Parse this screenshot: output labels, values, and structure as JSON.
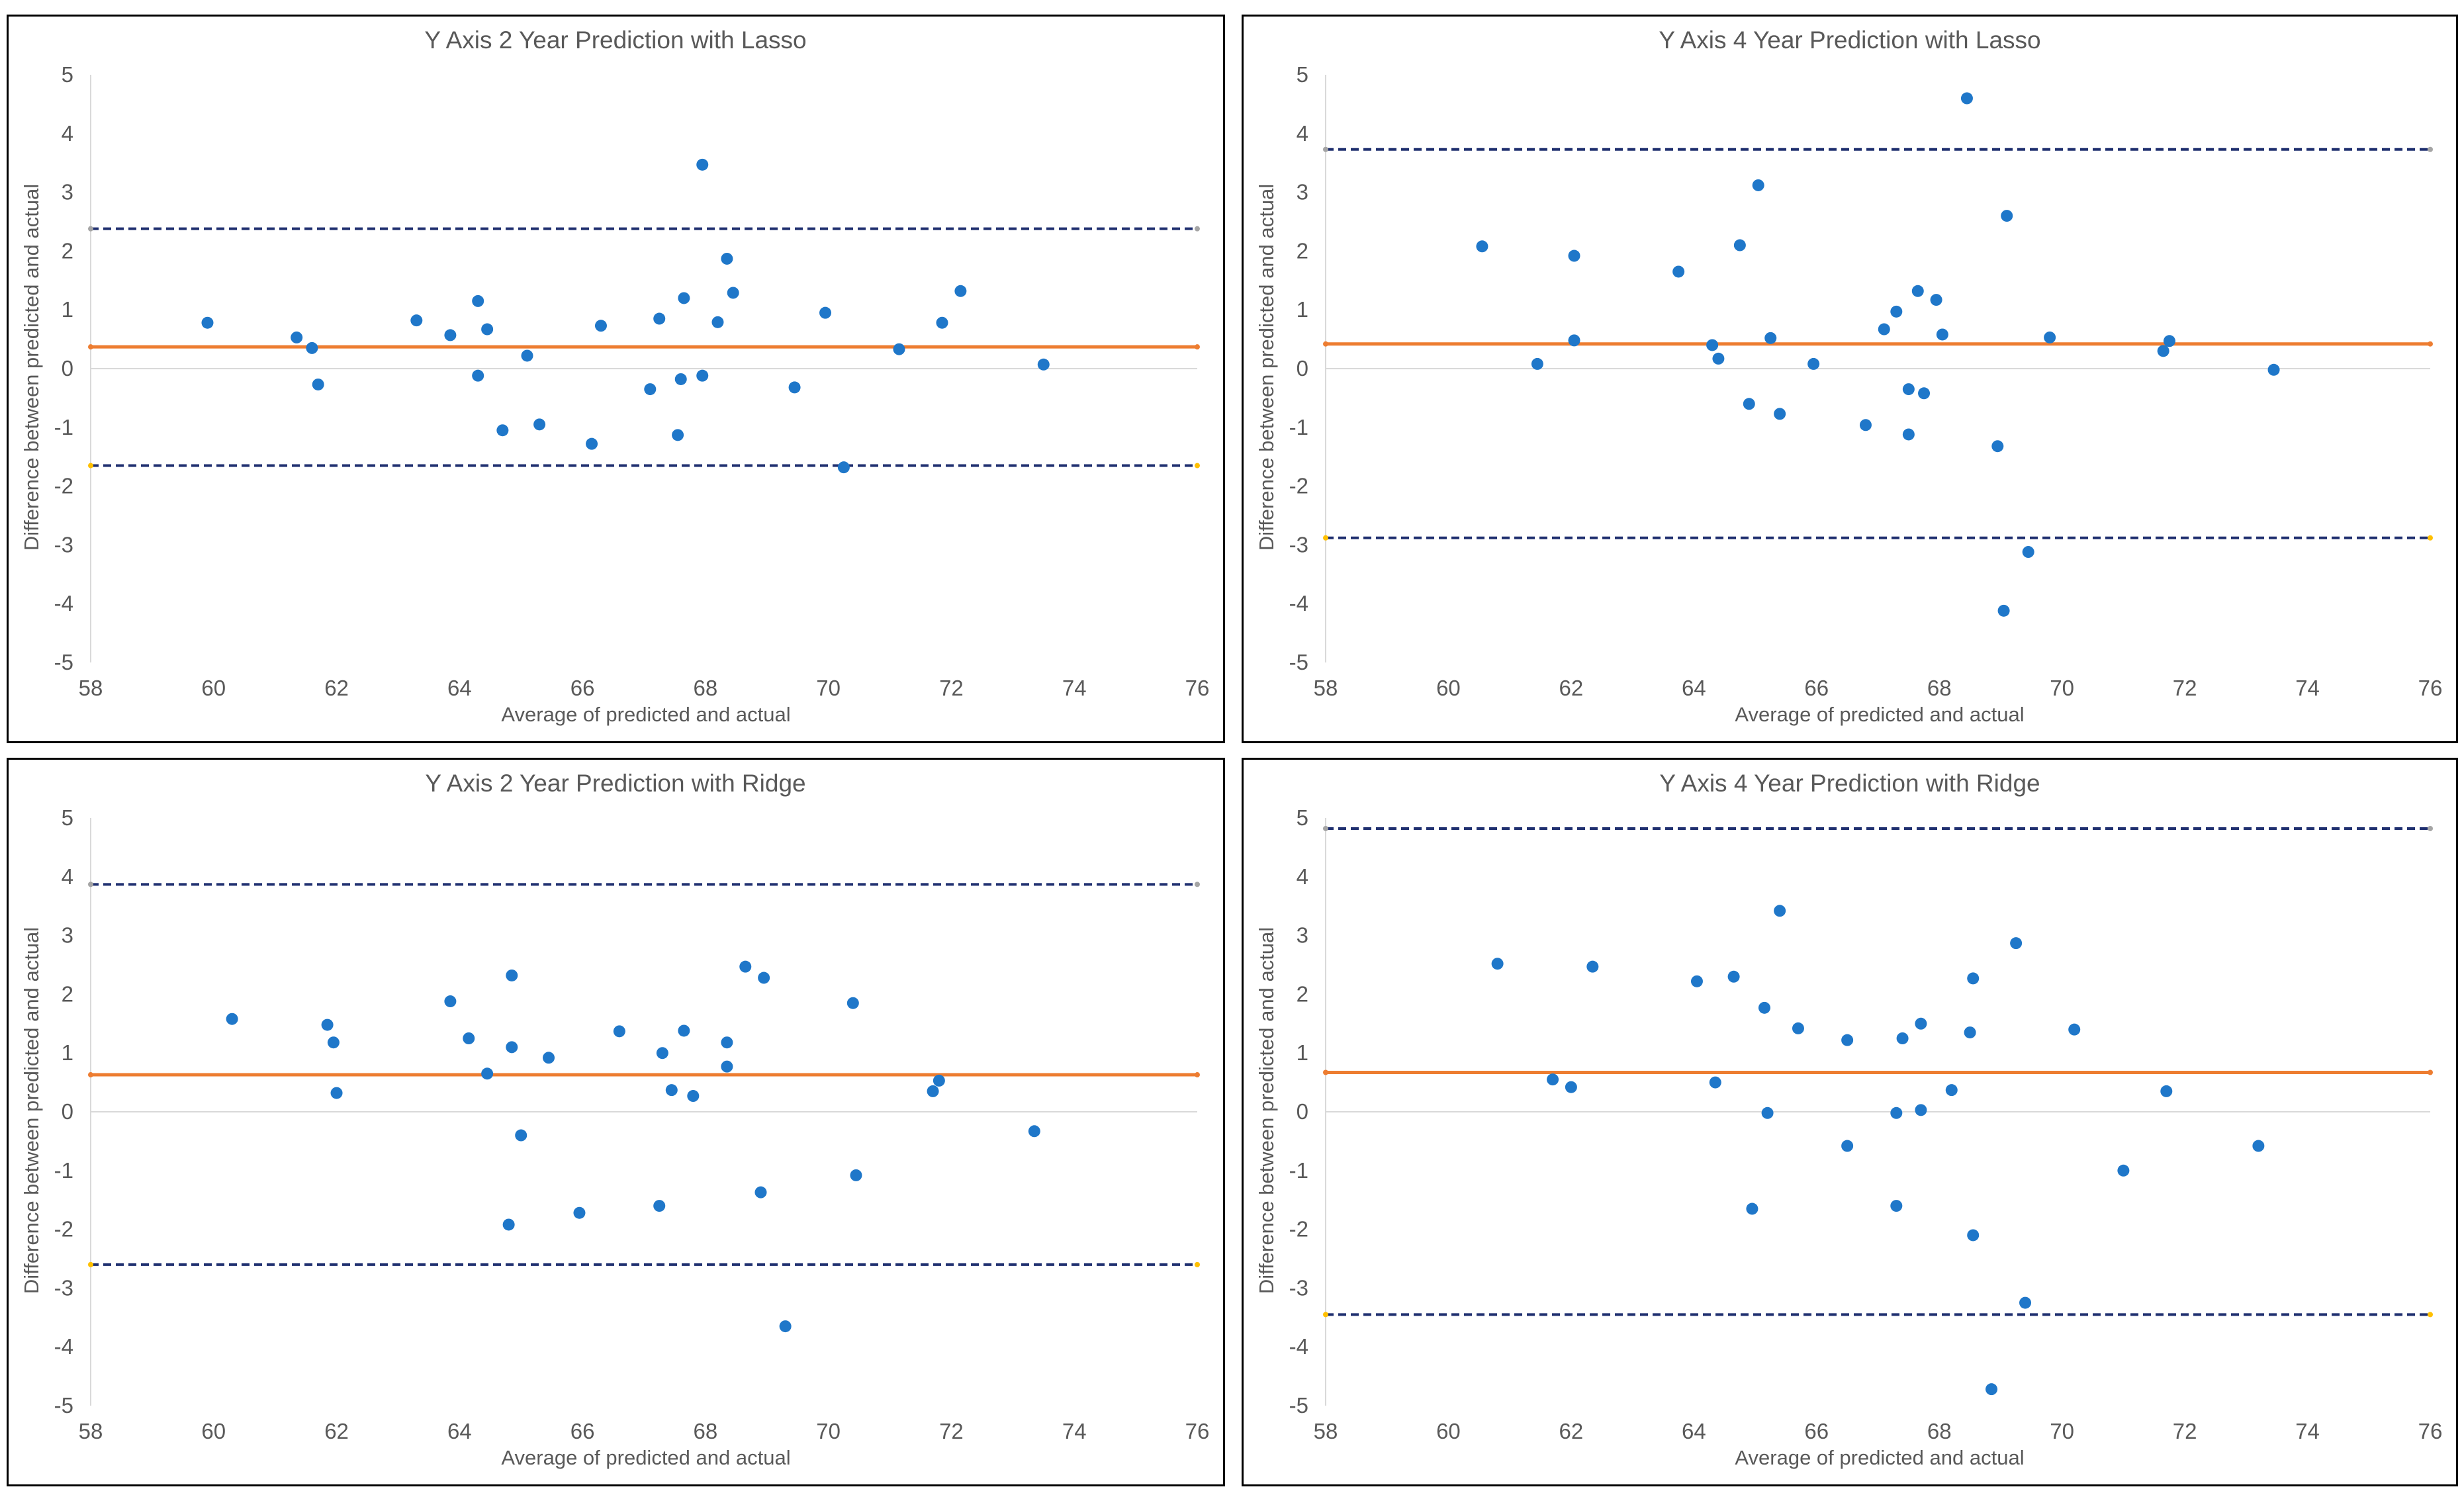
{
  "colors": {
    "points": "#1f77c9",
    "mean_line": "#ed7d31",
    "limit_line": "#1f2f6f",
    "zero_line": "#d9d9d9",
    "text": "#595959",
    "upper_marker": "#a5a5a5",
    "lower_marker": "#ffc000"
  },
  "chart_data": [
    {
      "type": "scatter",
      "title": "Y Axis 2 Year Prediction with Lasso",
      "xlabel": "Average of predicted and actual",
      "ylabel": "Difference between predicted and actual",
      "xlim": [
        58,
        76
      ],
      "ylim": [
        -5,
        5
      ],
      "xticks": [
        58,
        60,
        62,
        64,
        66,
        68,
        70,
        72,
        74,
        76
      ],
      "yticks": [
        -5,
        -4,
        -3,
        -2,
        -1,
        0,
        1,
        2,
        3,
        4,
        5
      ],
      "mean": 0.37,
      "upper_limit": 2.38,
      "lower_limit": -1.65,
      "x": [
        59.9,
        61.35,
        61.6,
        61.7,
        63.3,
        63.85,
        64.3,
        64.3,
        64.45,
        64.7,
        65.1,
        65.3,
        66.15,
        66.3,
        67.1,
        67.25,
        67.55,
        67.6,
        67.65,
        67.95,
        67.95,
        68.2,
        68.35,
        68.45,
        69.45,
        69.95,
        70.25,
        71.15,
        71.85,
        72.15,
        73.5
      ],
      "y": [
        0.78,
        0.53,
        0.35,
        -0.27,
        0.82,
        0.57,
        1.15,
        -0.12,
        0.67,
        -1.05,
        0.22,
        -0.95,
        -1.28,
        0.73,
        -0.35,
        0.85,
        -1.13,
        -0.18,
        1.2,
        3.47,
        -0.12,
        0.79,
        1.87,
        1.29,
        -0.32,
        0.95,
        -1.68,
        0.33,
        0.78,
        1.32,
        0.07
      ]
    },
    {
      "type": "scatter",
      "title": "Y Axis 4 Year Prediction with Lasso",
      "xlabel": "Average of predicted and actual",
      "ylabel": "Difference between predicted and actual",
      "xlim": [
        58,
        76
      ],
      "ylim": [
        -5,
        5
      ],
      "xticks": [
        58,
        60,
        62,
        64,
        66,
        68,
        70,
        72,
        74,
        76
      ],
      "yticks": [
        -5,
        -4,
        -3,
        -2,
        -1,
        0,
        1,
        2,
        3,
        4,
        5
      ],
      "mean": 0.42,
      "upper_limit": 3.73,
      "lower_limit": -2.88,
      "x": [
        60.55,
        61.45,
        62.05,
        62.05,
        63.75,
        64.3,
        64.4,
        64.75,
        64.9,
        65.05,
        65.25,
        65.4,
        65.95,
        66.8,
        67.1,
        67.3,
        67.5,
        67.5,
        67.65,
        67.75,
        67.95,
        68.05,
        68.45,
        68.95,
        69.05,
        69.1,
        69.45,
        69.8,
        71.65,
        71.75,
        73.45
      ],
      "y": [
        2.08,
        0.08,
        1.92,
        0.48,
        1.65,
        0.4,
        0.17,
        2.1,
        -0.6,
        3.12,
        0.52,
        -0.77,
        0.08,
        -0.96,
        0.67,
        0.97,
        -0.35,
        -1.12,
        1.32,
        -0.42,
        1.17,
        0.58,
        4.6,
        -1.32,
        -4.12,
        2.6,
        -3.12,
        0.53,
        0.3,
        0.47,
        -0.02
      ]
    },
    {
      "type": "scatter",
      "title": "Y Axis 2 Year Prediction with Ridge",
      "xlabel": "Average of predicted and actual",
      "ylabel": "Difference between predicted and actual",
      "xlim": [
        58,
        76
      ],
      "ylim": [
        -5,
        5
      ],
      "xticks": [
        58,
        60,
        62,
        64,
        66,
        68,
        70,
        72,
        74,
        76
      ],
      "yticks": [
        -5,
        -4,
        -3,
        -2,
        -1,
        0,
        1,
        2,
        3,
        4,
        5
      ],
      "mean": 0.63,
      "upper_limit": 3.87,
      "lower_limit": -2.6,
      "x": [
        60.3,
        61.85,
        61.95,
        62.0,
        63.85,
        64.15,
        64.45,
        64.8,
        64.85,
        64.85,
        65.0,
        65.45,
        65.95,
        66.6,
        67.25,
        67.3,
        67.45,
        67.65,
        67.8,
        68.35,
        68.35,
        68.65,
        68.9,
        68.95,
        69.3,
        70.4,
        70.45,
        71.7,
        71.8,
        73.35
      ],
      "y": [
        1.58,
        1.48,
        1.18,
        0.32,
        1.88,
        1.25,
        0.65,
        -1.92,
        1.1,
        2.32,
        -0.4,
        0.92,
        -1.72,
        1.37,
        -1.6,
        1.0,
        0.37,
        1.38,
        0.27,
        1.18,
        0.77,
        2.47,
        -1.37,
        2.28,
        -3.65,
        1.85,
        -1.08,
        0.35,
        0.53,
        -0.33
      ]
    },
    {
      "type": "scatter",
      "title": "Y Axis 4 Year Prediction with Ridge",
      "xlabel": "Average of predicted and actual",
      "ylabel": "Difference between predicted and actual",
      "xlim": [
        58,
        76
      ],
      "ylim": [
        -5,
        5
      ],
      "xticks": [
        58,
        60,
        62,
        64,
        66,
        68,
        70,
        72,
        74,
        76
      ],
      "yticks": [
        -5,
        -4,
        -3,
        -2,
        -1,
        0,
        1,
        2,
        3,
        4,
        5
      ],
      "mean": 0.67,
      "upper_limit": 4.82,
      "lower_limit": -3.45,
      "x": [
        60.8,
        61.7,
        62.0,
        62.35,
        64.05,
        64.35,
        64.65,
        64.95,
        65.15,
        65.2,
        65.4,
        65.7,
        66.5,
        66.5,
        67.3,
        67.3,
        67.4,
        67.7,
        67.7,
        68.2,
        68.5,
        68.55,
        68.55,
        68.85,
        69.25,
        69.4,
        70.2,
        71.0,
        71.7,
        73.2
      ],
      "y": [
        2.52,
        0.55,
        0.42,
        2.47,
        2.22,
        0.5,
        2.3,
        -1.65,
        1.77,
        -0.02,
        3.42,
        1.42,
        1.22,
        -0.58,
        -0.02,
        -1.6,
        1.25,
        1.5,
        0.03,
        0.37,
        1.35,
        2.27,
        -2.1,
        -4.72,
        2.87,
        -3.25,
        1.4,
        -1.0,
        0.35,
        -0.58
      ]
    }
  ]
}
